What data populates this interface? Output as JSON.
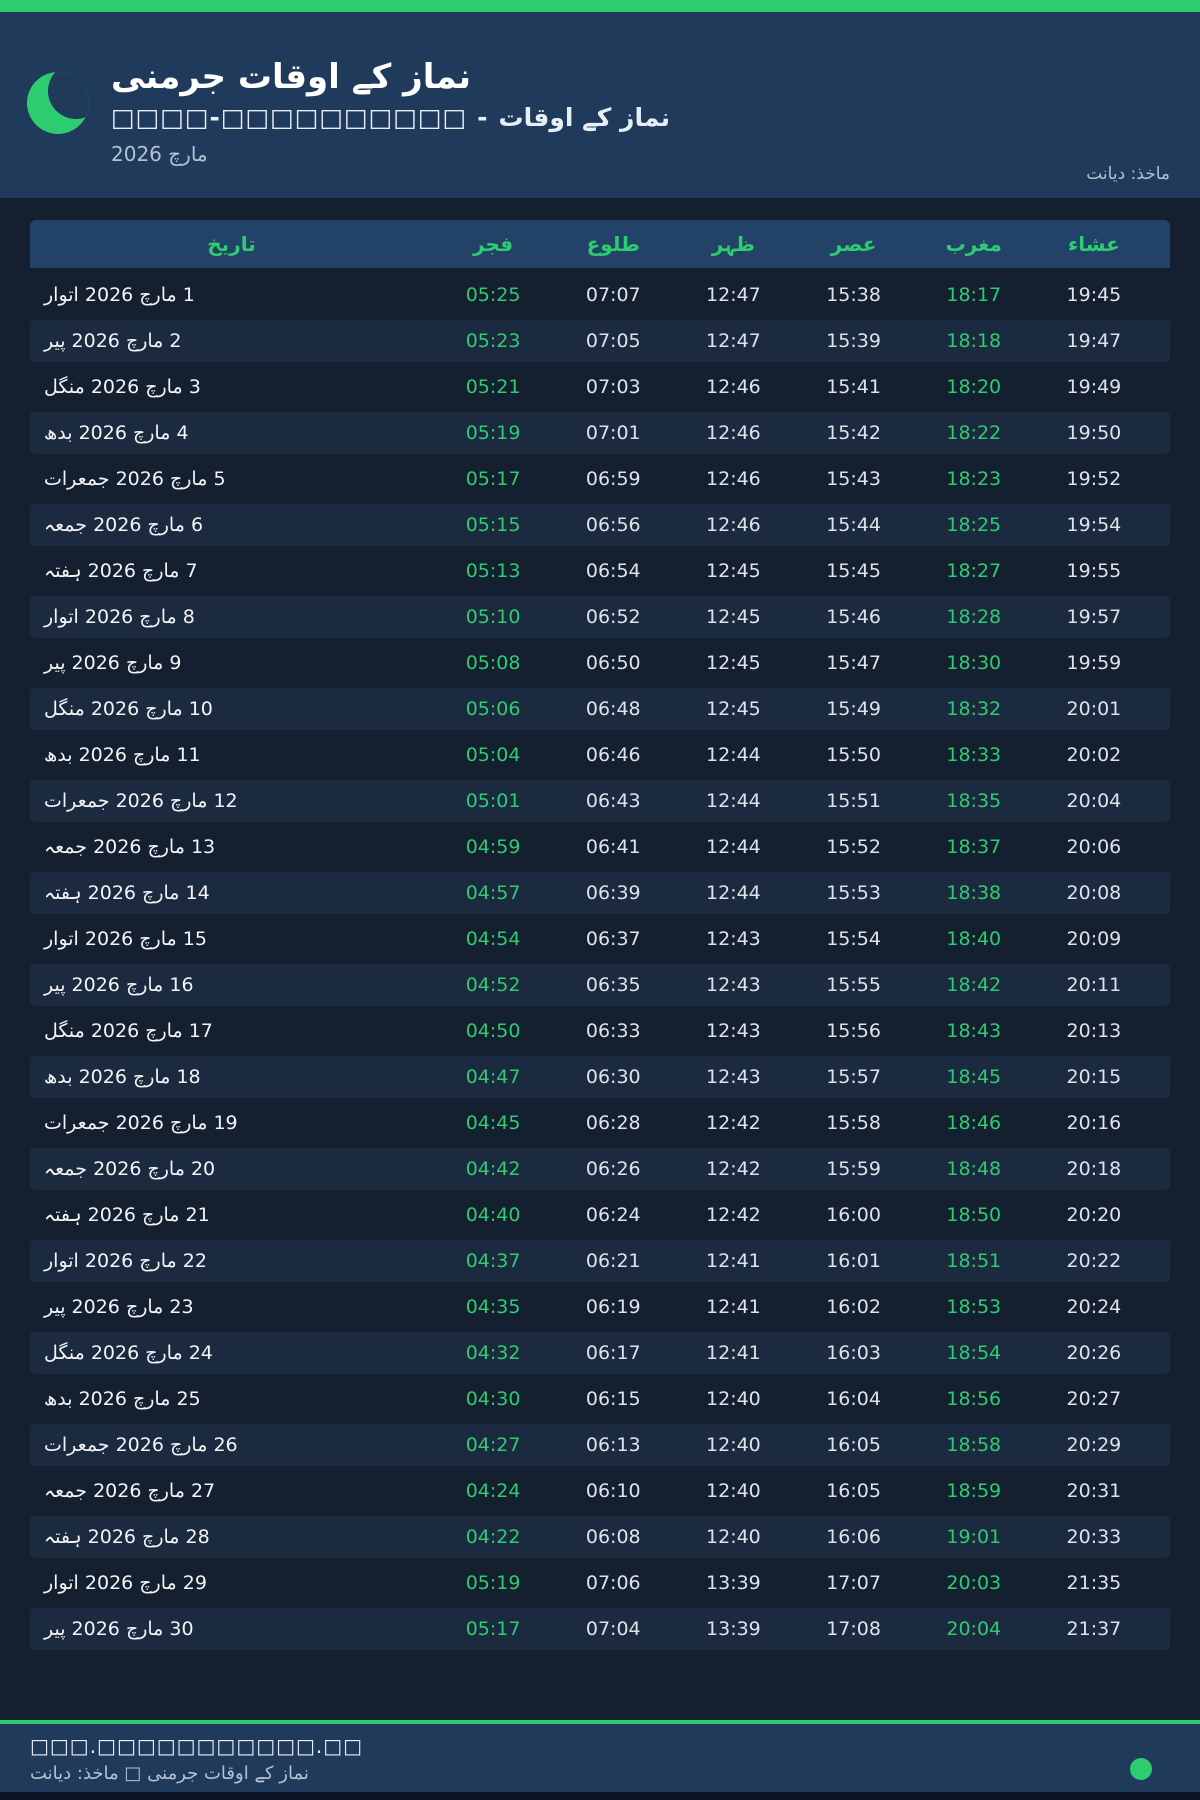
{
  "header": {
    "title": "نماز کے اوقات جرمنی",
    "subtitle_label": "نماز کے اوقات",
    "subtitle_sep": "-",
    "subtitle_city_boxes": "□□□□-□□□□□□□□□□",
    "month": "مارچ 2026",
    "source": "ماخذ: دیانت",
    "moon_icon": "crescent-moon-icon"
  },
  "table": {
    "headers": {
      "date": "تاریخ",
      "fajr": "فجر",
      "sunrise": "طلوع",
      "zuhr": "ظہر",
      "asr": "عصر",
      "maghrib": "مغرب",
      "isha": "عشاء"
    },
    "rows": [
      {
        "date": "1 مارچ 2026 اتوار",
        "fajr": "05:25",
        "sunrise": "07:07",
        "zuhr": "12:47",
        "asr": "15:38",
        "maghrib": "18:17",
        "isha": "19:45"
      },
      {
        "date": "2 مارچ 2026 پیر",
        "fajr": "05:23",
        "sunrise": "07:05",
        "zuhr": "12:47",
        "asr": "15:39",
        "maghrib": "18:18",
        "isha": "19:47"
      },
      {
        "date": "3 مارچ 2026 منگل",
        "fajr": "05:21",
        "sunrise": "07:03",
        "zuhr": "12:46",
        "asr": "15:41",
        "maghrib": "18:20",
        "isha": "19:49"
      },
      {
        "date": "4 مارچ 2026 بدھ",
        "fajr": "05:19",
        "sunrise": "07:01",
        "zuhr": "12:46",
        "asr": "15:42",
        "maghrib": "18:22",
        "isha": "19:50"
      },
      {
        "date": "5 مارچ 2026 جمعرات",
        "fajr": "05:17",
        "sunrise": "06:59",
        "zuhr": "12:46",
        "asr": "15:43",
        "maghrib": "18:23",
        "isha": "19:52"
      },
      {
        "date": "6 مارچ 2026 جمعہ",
        "fajr": "05:15",
        "sunrise": "06:56",
        "zuhr": "12:46",
        "asr": "15:44",
        "maghrib": "18:25",
        "isha": "19:54"
      },
      {
        "date": "7 مارچ 2026 ہفتہ",
        "fajr": "05:13",
        "sunrise": "06:54",
        "zuhr": "12:45",
        "asr": "15:45",
        "maghrib": "18:27",
        "isha": "19:55"
      },
      {
        "date": "8 مارچ 2026 اتوار",
        "fajr": "05:10",
        "sunrise": "06:52",
        "zuhr": "12:45",
        "asr": "15:46",
        "maghrib": "18:28",
        "isha": "19:57"
      },
      {
        "date": "9 مارچ 2026 پیر",
        "fajr": "05:08",
        "sunrise": "06:50",
        "zuhr": "12:45",
        "asr": "15:47",
        "maghrib": "18:30",
        "isha": "19:59"
      },
      {
        "date": "10 مارچ 2026 منگل",
        "fajr": "05:06",
        "sunrise": "06:48",
        "zuhr": "12:45",
        "asr": "15:49",
        "maghrib": "18:32",
        "isha": "20:01"
      },
      {
        "date": "11 مارچ 2026 بدھ",
        "fajr": "05:04",
        "sunrise": "06:46",
        "zuhr": "12:44",
        "asr": "15:50",
        "maghrib": "18:33",
        "isha": "20:02"
      },
      {
        "date": "12 مارچ 2026 جمعرات",
        "fajr": "05:01",
        "sunrise": "06:43",
        "zuhr": "12:44",
        "asr": "15:51",
        "maghrib": "18:35",
        "isha": "20:04"
      },
      {
        "date": "13 مارچ 2026 جمعہ",
        "fajr": "04:59",
        "sunrise": "06:41",
        "zuhr": "12:44",
        "asr": "15:52",
        "maghrib": "18:37",
        "isha": "20:06"
      },
      {
        "date": "14 مارچ 2026 ہفتہ",
        "fajr": "04:57",
        "sunrise": "06:39",
        "zuhr": "12:44",
        "asr": "15:53",
        "maghrib": "18:38",
        "isha": "20:08"
      },
      {
        "date": "15 مارچ 2026 اتوار",
        "fajr": "04:54",
        "sunrise": "06:37",
        "zuhr": "12:43",
        "asr": "15:54",
        "maghrib": "18:40",
        "isha": "20:09"
      },
      {
        "date": "16 مارچ 2026 پیر",
        "fajr": "04:52",
        "sunrise": "06:35",
        "zuhr": "12:43",
        "asr": "15:55",
        "maghrib": "18:42",
        "isha": "20:11"
      },
      {
        "date": "17 مارچ 2026 منگل",
        "fajr": "04:50",
        "sunrise": "06:33",
        "zuhr": "12:43",
        "asr": "15:56",
        "maghrib": "18:43",
        "isha": "20:13"
      },
      {
        "date": "18 مارچ 2026 بدھ",
        "fajr": "04:47",
        "sunrise": "06:30",
        "zuhr": "12:43",
        "asr": "15:57",
        "maghrib": "18:45",
        "isha": "20:15"
      },
      {
        "date": "19 مارچ 2026 جمعرات",
        "fajr": "04:45",
        "sunrise": "06:28",
        "zuhr": "12:42",
        "asr": "15:58",
        "maghrib": "18:46",
        "isha": "20:16"
      },
      {
        "date": "20 مارچ 2026 جمعہ",
        "fajr": "04:42",
        "sunrise": "06:26",
        "zuhr": "12:42",
        "asr": "15:59",
        "maghrib": "18:48",
        "isha": "20:18"
      },
      {
        "date": "21 مارچ 2026 ہفتہ",
        "fajr": "04:40",
        "sunrise": "06:24",
        "zuhr": "12:42",
        "asr": "16:00",
        "maghrib": "18:50",
        "isha": "20:20"
      },
      {
        "date": "22 مارچ 2026 اتوار",
        "fajr": "04:37",
        "sunrise": "06:21",
        "zuhr": "12:41",
        "asr": "16:01",
        "maghrib": "18:51",
        "isha": "20:22"
      },
      {
        "date": "23 مارچ 2026 پیر",
        "fajr": "04:35",
        "sunrise": "06:19",
        "zuhr": "12:41",
        "asr": "16:02",
        "maghrib": "18:53",
        "isha": "20:24"
      },
      {
        "date": "24 مارچ 2026 منگل",
        "fajr": "04:32",
        "sunrise": "06:17",
        "zuhr": "12:41",
        "asr": "16:03",
        "maghrib": "18:54",
        "isha": "20:26"
      },
      {
        "date": "25 مارچ 2026 بدھ",
        "fajr": "04:30",
        "sunrise": "06:15",
        "zuhr": "12:40",
        "asr": "16:04",
        "maghrib": "18:56",
        "isha": "20:27"
      },
      {
        "date": "26 مارچ 2026 جمعرات",
        "fajr": "04:27",
        "sunrise": "06:13",
        "zuhr": "12:40",
        "asr": "16:05",
        "maghrib": "18:58",
        "isha": "20:29"
      },
      {
        "date": "27 مارچ 2026 جمعہ",
        "fajr": "04:24",
        "sunrise": "06:10",
        "zuhr": "12:40",
        "asr": "16:05",
        "maghrib": "18:59",
        "isha": "20:31"
      },
      {
        "date": "28 مارچ 2026 ہفتہ",
        "fajr": "04:22",
        "sunrise": "06:08",
        "zuhr": "12:40",
        "asr": "16:06",
        "maghrib": "19:01",
        "isha": "20:33"
      },
      {
        "date": "29 مارچ 2026 اتوار",
        "fajr": "05:19",
        "sunrise": "07:06",
        "zuhr": "13:39",
        "asr": "17:07",
        "maghrib": "20:03",
        "isha": "21:35"
      },
      {
        "date": "30 مارچ 2026 پیر",
        "fajr": "05:17",
        "sunrise": "07:04",
        "zuhr": "13:39",
        "asr": "17:08",
        "maghrib": "20:04",
        "isha": "21:37"
      }
    ]
  },
  "footer": {
    "url_boxes": "□□□.□□□□□□□□□□□.□□",
    "credit": "نماز کے اوقات جرمنی □ ماخذ: دیانت",
    "status_dot": "green-dot"
  },
  "colors": {
    "accent": "#2ecc71",
    "header_bg": "#203a5c",
    "page_bg": "#141f2f",
    "thead_bg": "#224367",
    "row_alt": "#1c2a40",
    "text_main": "#f2f4f6",
    "text_time": "#dde3e9",
    "text_muted": "#b3c1d2",
    "strip": "#0b1422"
  }
}
